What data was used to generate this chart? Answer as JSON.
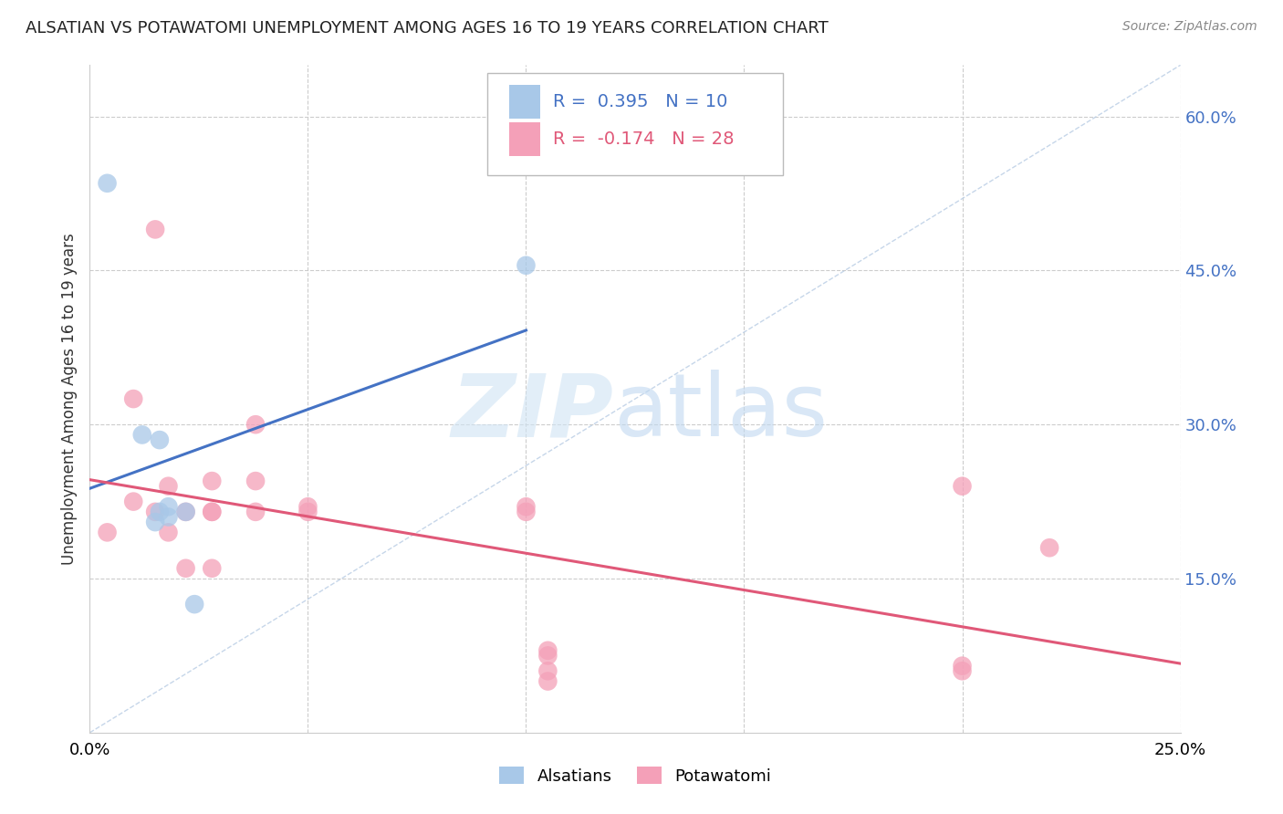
{
  "title": "ALSATIAN VS POTAWATOMI UNEMPLOYMENT AMONG AGES 16 TO 19 YEARS CORRELATION CHART",
  "source": "Source: ZipAtlas.com",
  "ylabel": "Unemployment Among Ages 16 to 19 years",
  "xlim": [
    0.0,
    0.25
  ],
  "ylim": [
    0.0,
    0.65
  ],
  "xticks": [
    0.0,
    0.05,
    0.1,
    0.15,
    0.2,
    0.25
  ],
  "xticklabels": [
    "0.0%",
    "",
    "",
    "",
    "",
    "25.0%"
  ],
  "yticks_right": [
    0.15,
    0.3,
    0.45,
    0.6
  ],
  "ytick_labels_right": [
    "15.0%",
    "30.0%",
    "45.0%",
    "60.0%"
  ],
  "alsatian_x": [
    0.004,
    0.012,
    0.016,
    0.016,
    0.018,
    0.018,
    0.022,
    0.024,
    0.1,
    0.015
  ],
  "alsatian_y": [
    0.535,
    0.29,
    0.285,
    0.215,
    0.22,
    0.21,
    0.215,
    0.125,
    0.455,
    0.205
  ],
  "potawatomi_x": [
    0.004,
    0.01,
    0.01,
    0.015,
    0.015,
    0.018,
    0.018,
    0.022,
    0.022,
    0.028,
    0.028,
    0.028,
    0.028,
    0.038,
    0.038,
    0.038,
    0.05,
    0.05,
    0.1,
    0.105,
    0.105,
    0.105,
    0.105,
    0.2,
    0.2,
    0.22,
    0.1,
    0.2
  ],
  "potawatomi_y": [
    0.195,
    0.325,
    0.225,
    0.49,
    0.215,
    0.24,
    0.195,
    0.215,
    0.16,
    0.245,
    0.215,
    0.215,
    0.16,
    0.3,
    0.215,
    0.245,
    0.215,
    0.22,
    0.22,
    0.06,
    0.075,
    0.08,
    0.05,
    0.24,
    0.06,
    0.18,
    0.215,
    0.065
  ],
  "alsatian_color": "#a8c8e8",
  "potawatomi_color": "#f4a0b8",
  "alsatian_line_color": "#4472c4",
  "potawatomi_line_color": "#e05878",
  "alsatian_R": "0.395",
  "alsatian_N": "10",
  "potawatomi_R": "-0.174",
  "potawatomi_N": "28",
  "background_color": "#ffffff",
  "grid_color": "#cccccc"
}
